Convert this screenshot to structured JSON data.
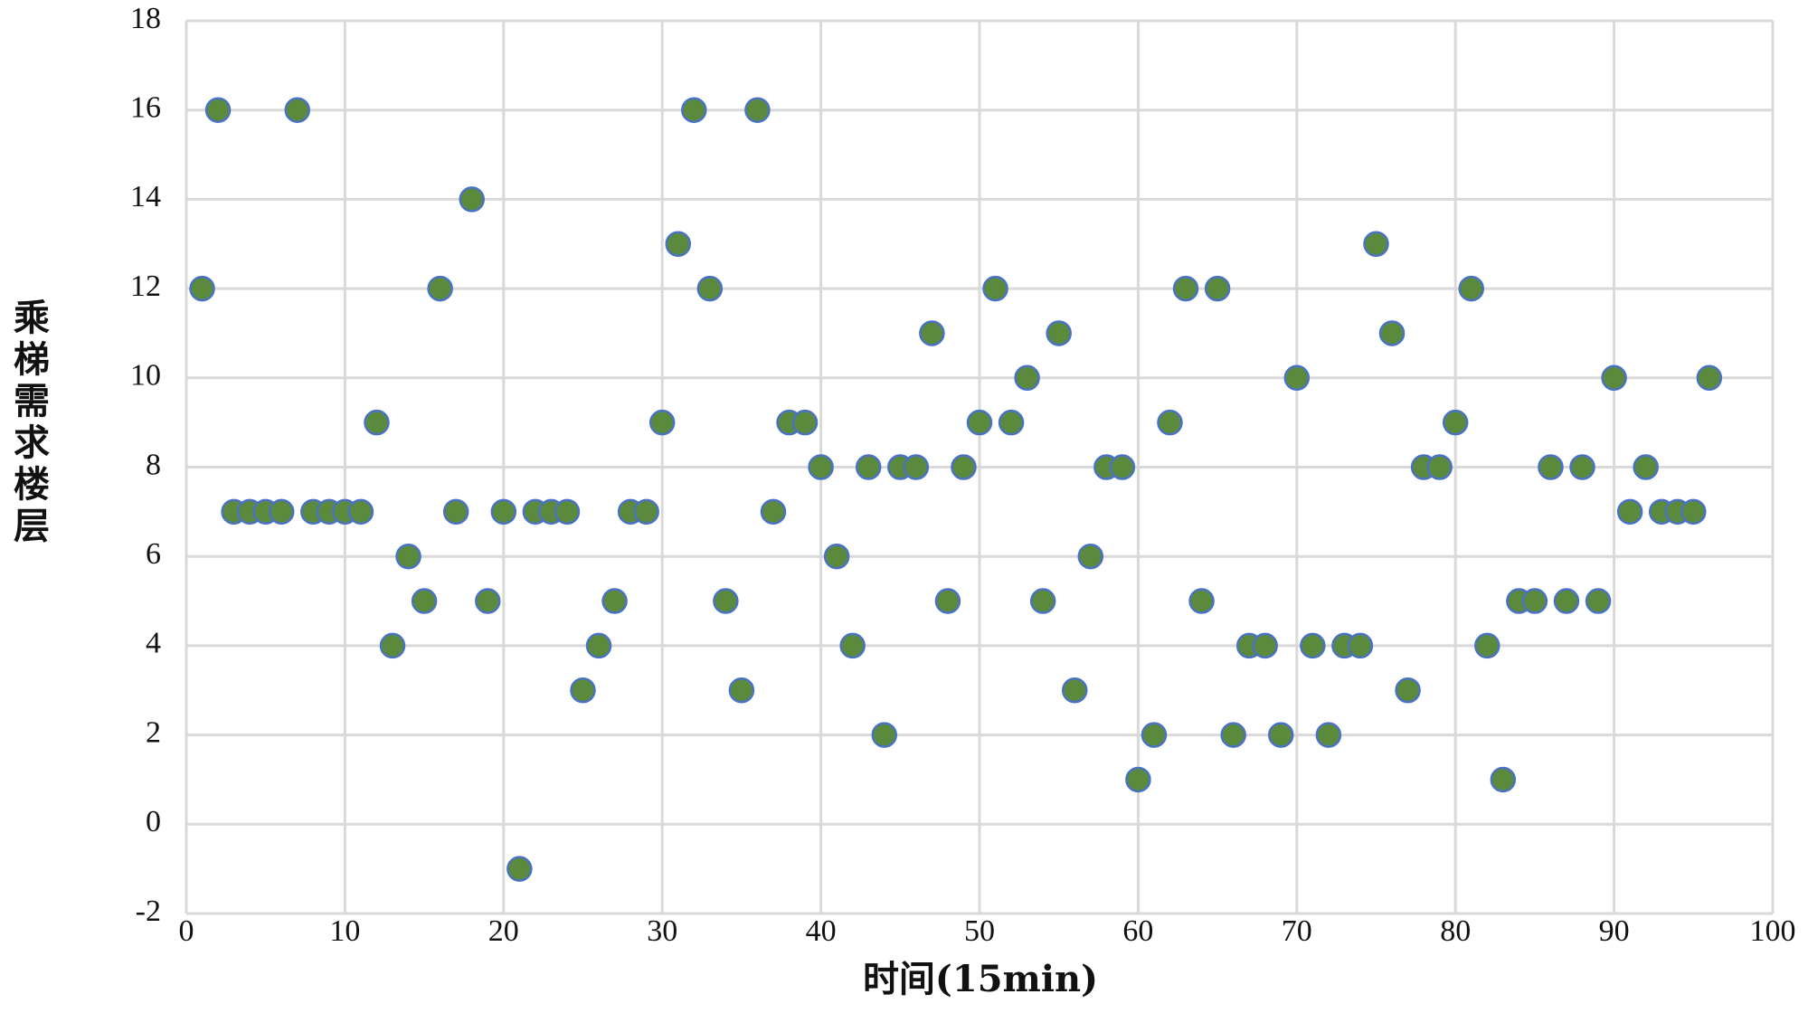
{
  "chart_data": {
    "type": "scatter",
    "x_label": "时间(15min)",
    "y_label": "乘梯需求楼层",
    "x": [
      1,
      2,
      3,
      4,
      5,
      6,
      7,
      8,
      9,
      10,
      11,
      12,
      13,
      14,
      15,
      16,
      17,
      18,
      19,
      20,
      21,
      22,
      23,
      24,
      25,
      26,
      27,
      28,
      29,
      30,
      31,
      32,
      33,
      34,
      35,
      36,
      37,
      38,
      39,
      40,
      41,
      42,
      43,
      44,
      45,
      46,
      47,
      48,
      49,
      50,
      51,
      52,
      53,
      54,
      55,
      56,
      57,
      58,
      59,
      60,
      61,
      62,
      63,
      64,
      65,
      66,
      67,
      68,
      69,
      70,
      71,
      72,
      73,
      74,
      75,
      76,
      77,
      78,
      79,
      80,
      81,
      82,
      83,
      84,
      85,
      86,
      87,
      88,
      89,
      90,
      91,
      92,
      93,
      94,
      95,
      96
    ],
    "values": [
      12,
      16,
      7,
      7,
      7,
      7,
      16,
      7,
      7,
      7,
      7,
      9,
      4,
      6,
      5,
      12,
      7,
      14,
      5,
      7,
      -1,
      7,
      7,
      7,
      3,
      4,
      5,
      7,
      7,
      9,
      13,
      16,
      12,
      5,
      3,
      16,
      7,
      9,
      9,
      8,
      6,
      4,
      8,
      2,
      8,
      8,
      11,
      5,
      8,
      9,
      12,
      9,
      10,
      5,
      11,
      3,
      6,
      8,
      8,
      1,
      2,
      9,
      12,
      5,
      12,
      2,
      4,
      4,
      2,
      10,
      4,
      2,
      4,
      4,
      13,
      11,
      3,
      8,
      8,
      9,
      12,
      4,
      1,
      5,
      5,
      8,
      5,
      8,
      5,
      10,
      7,
      8,
      7,
      7,
      7,
      10
    ],
    "color": "#5b8a3c",
    "edge_color": "#4a72c4",
    "xlim": [
      0,
      100
    ],
    "xticks": [
      0,
      10,
      20,
      30,
      40,
      50,
      60,
      70,
      80,
      90,
      100
    ],
    "ylim": [
      -2,
      18
    ],
    "yticks": [
      -2,
      0,
      2,
      4,
      6,
      8,
      10,
      12,
      14,
      16,
      18
    ],
    "grid": true
  }
}
